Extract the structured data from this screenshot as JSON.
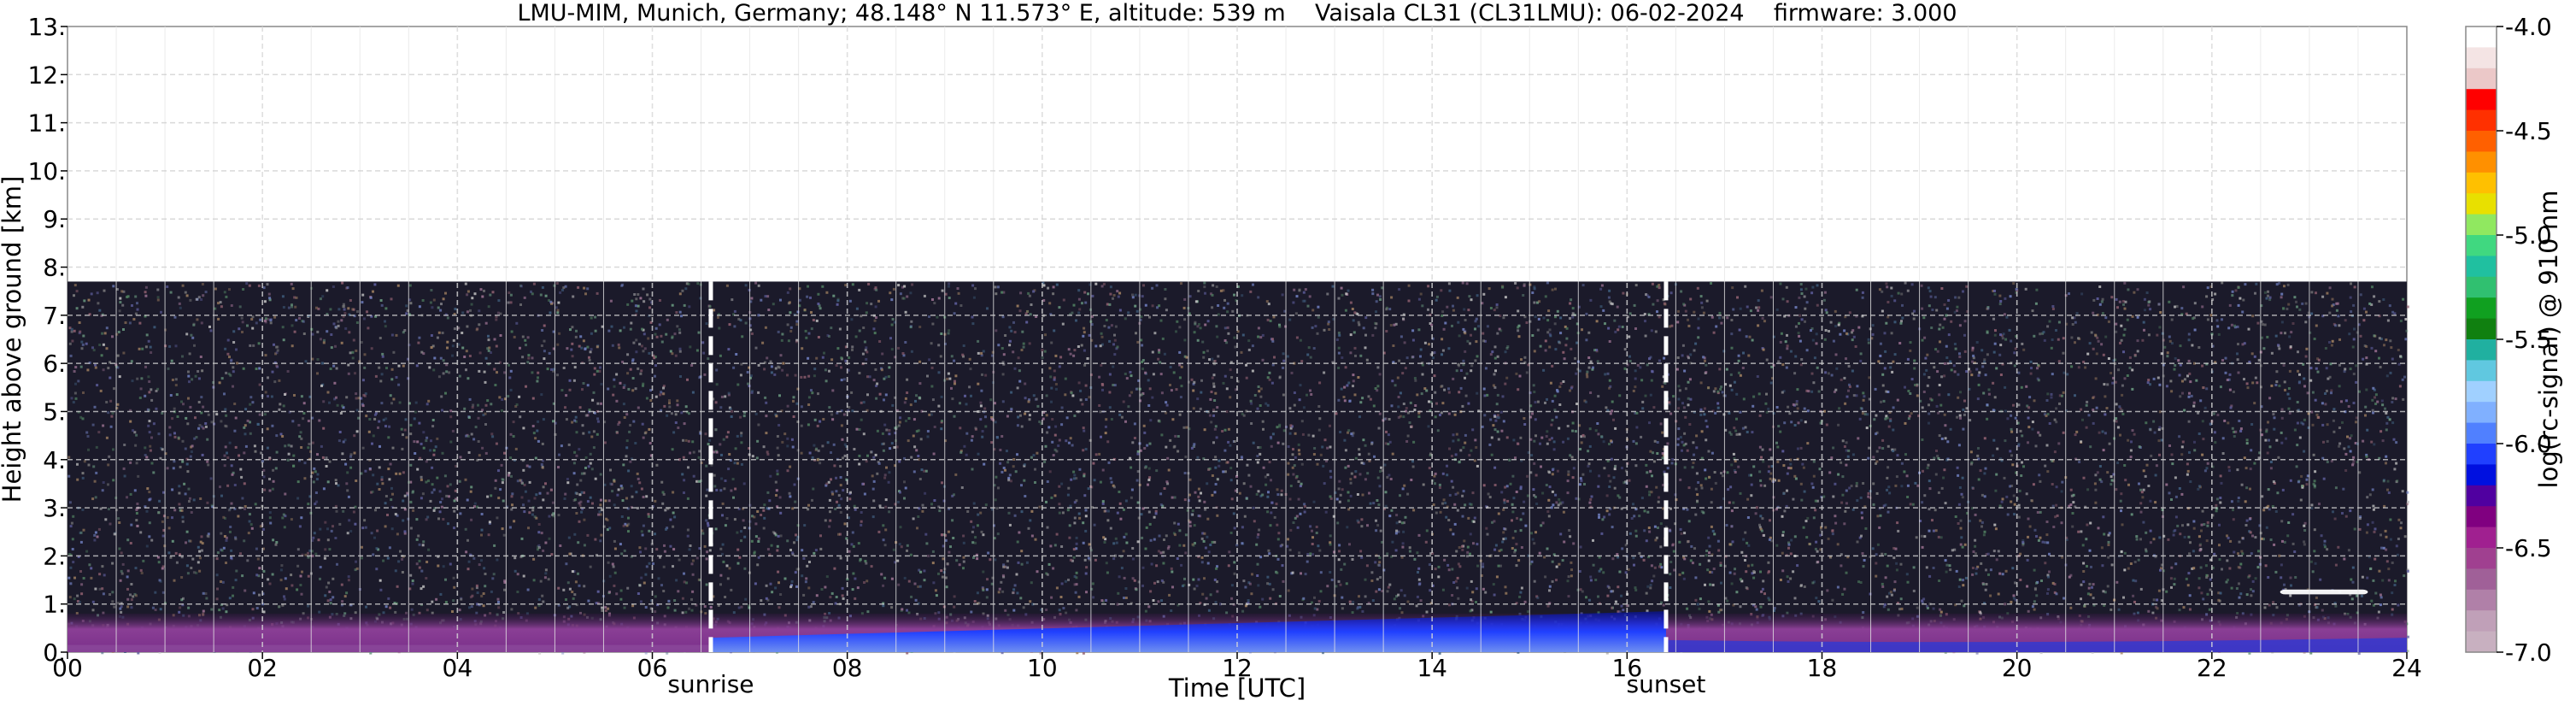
{
  "chart_data": {
    "type": "heatmap",
    "title": "LMU-MIM, Munich, Germany; 48.148° N 11.573° E, altitude: 539 m    Vaisala CL31 (CL31LMU): 06-02-2024    firmware: 3.000",
    "xlabel": "Time [UTC]",
    "ylabel": "Height above ground [km]",
    "xlim": [
      0,
      24
    ],
    "ylim": [
      0,
      13
    ],
    "x_ticks": [
      "00",
      "02",
      "04",
      "06",
      "08",
      "10",
      "12",
      "14",
      "16",
      "18",
      "20",
      "22",
      "24"
    ],
    "y_ticks": [
      "0.",
      "1.",
      "2.",
      "3.",
      "4.",
      "5.",
      "6.",
      "7.",
      "8.",
      "9.",
      "10.",
      "11.",
      "12.",
      "13."
    ],
    "data_top_km": 7.7,
    "grid": true,
    "markers": [
      {
        "label": "sunrise",
        "x": 6.6
      },
      {
        "label": "sunset",
        "x": 16.4
      }
    ],
    "features": [
      {
        "name": "boundary-layer",
        "x_range": [
          0,
          24
        ],
        "height_km": [
          0,
          0.8
        ]
      },
      {
        "name": "cloud-return",
        "x_range": [
          22.7,
          23.6
        ],
        "height_km": [
          1.2,
          1.3
        ]
      }
    ],
    "colorbar": {
      "label": "log(rc-signal) @ 910 nm",
      "ticks": [
        "-4.0",
        "-4.5",
        "-5.0",
        "-5.5",
        "-6.0",
        "-6.5",
        "-7.0"
      ],
      "range": [
        -7.0,
        -4.0
      ],
      "colors": [
        "#ffffff",
        "#f4e4e4",
        "#ebc8c8",
        "#ff0000",
        "#ff3000",
        "#ff6000",
        "#ff9000",
        "#ffc000",
        "#e8e000",
        "#90e860",
        "#40d880",
        "#20c0a0",
        "#30c070",
        "#10a020",
        "#108010",
        "#20b0a0",
        "#60c8e0",
        "#a0d0ff",
        "#80b0ff",
        "#5080ff",
        "#2040ff",
        "#0010e0",
        "#5000a0",
        "#800080",
        "#a02090",
        "#a04090",
        "#a06098",
        "#b080a8",
        "#c0a0b8",
        "#c8b0c0"
      ]
    }
  }
}
